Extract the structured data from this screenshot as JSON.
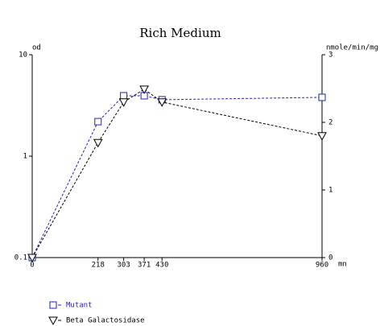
{
  "chart_data": {
    "type": "line",
    "title": "Rich Medium",
    "y_label": "od",
    "y2_label": "nmole/min/mg",
    "x_label": "mn",
    "x": [
      0,
      218,
      303,
      371,
      430,
      960
    ],
    "xlim": [
      0,
      960
    ],
    "xticks": [
      0,
      218,
      303,
      371,
      430,
      960
    ],
    "ylim": [
      0.1,
      10
    ],
    "yticks": [
      0.1,
      1,
      10
    ],
    "ylog": true,
    "y2lim": [
      0,
      3
    ],
    "y2ticks": [
      0,
      1,
      2,
      3
    ],
    "series": [
      {
        "name": "Mutant",
        "color": "#2020c0",
        "marker": "square",
        "values": [
          0.1,
          2.19,
          3.94,
          3.94,
          3.6,
          3.8
        ]
      },
      {
        "name": "Beta Galactosidase",
        "color": "#000000",
        "marker": "triangle",
        "axis": "y2",
        "values": [
          0,
          1.7,
          2.3,
          2.49,
          2.3,
          1.8
        ]
      }
    ],
    "legend": "bottom-left"
  }
}
